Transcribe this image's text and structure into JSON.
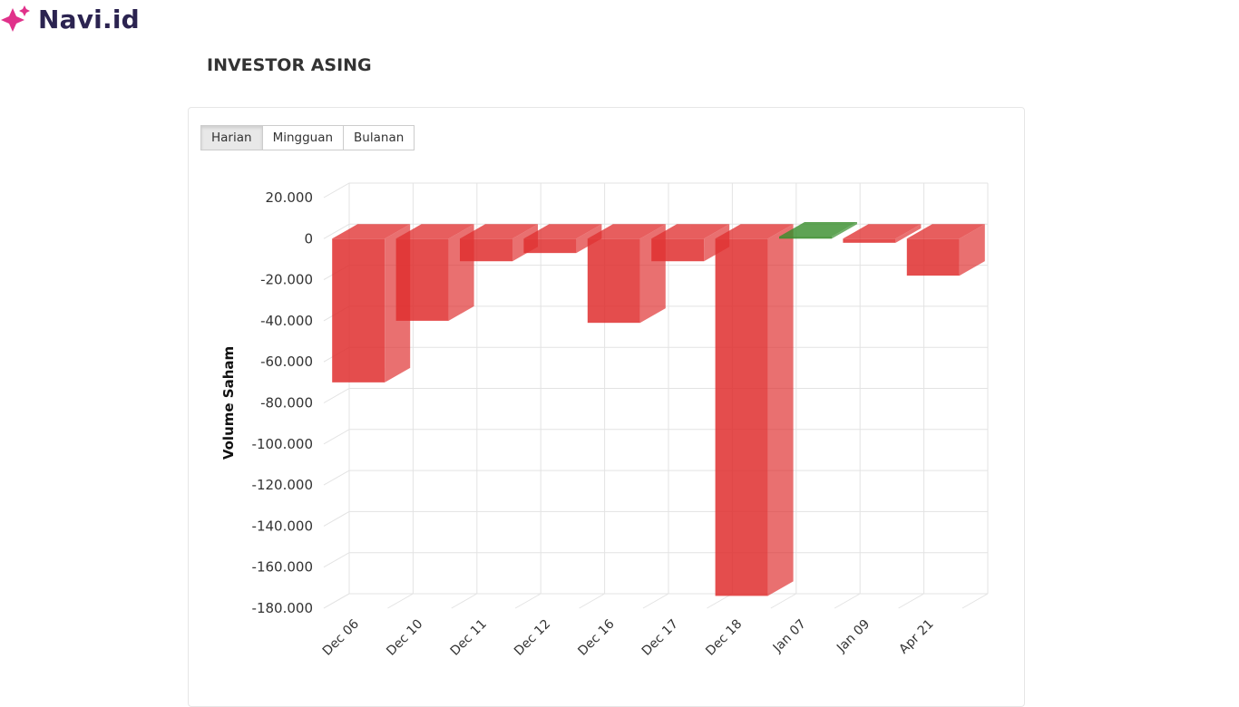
{
  "brand": {
    "name": "Navi.id",
    "logo_icon": "sparkle-icon",
    "logo_color": "#e0318a"
  },
  "section": {
    "title": "INVESTOR ASING"
  },
  "period_tabs": [
    {
      "label": "Harian",
      "active": true
    },
    {
      "label": "Mingguan",
      "active": false
    },
    {
      "label": "Bulanan",
      "active": false
    }
  ],
  "chart_data": {
    "type": "bar",
    "style": "3d-column",
    "title": "",
    "xlabel": "",
    "ylabel": "Volume Saham",
    "categories": [
      "Dec 06",
      "Dec 10",
      "Dec 11",
      "Dec 12",
      "Dec 16",
      "Dec 17",
      "Dec 18",
      "Jan 07",
      "Jan 09",
      "Apr 21"
    ],
    "values": [
      -70000,
      -40000,
      -11000,
      -7000,
      -41000,
      -11000,
      -174000,
      1000,
      -2000,
      -18000
    ],
    "ylim": [
      -180000,
      20000
    ],
    "ytick_step": 20000,
    "ytick_labels": [
      "20.000",
      "0",
      "-20.000",
      "-40.000",
      "-60.000",
      "-80.000",
      "-100.000",
      "-120.000",
      "-140.000",
      "-160.000",
      "-180.000"
    ],
    "grid": true,
    "legend": "none",
    "colors": {
      "negative": "#e03030",
      "positive": "#3a8e2e",
      "grid": "#e3e3e3"
    }
  }
}
